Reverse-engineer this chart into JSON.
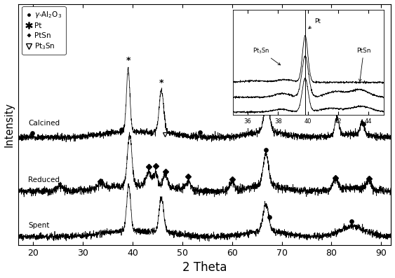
{
  "xlabel": "2 Theta",
  "ylabel": "Intensity",
  "xlim": [
    17,
    92
  ],
  "background_color": "#ffffff",
  "legend_entries": [
    {
      "label": "γ-Al₂O₃",
      "marker": "o"
    },
    {
      "label": "Pt",
      "marker": "*"
    },
    {
      "label": "PtSn",
      "marker": "D"
    },
    {
      "label": "Pt₃Sn",
      "marker": "v"
    }
  ],
  "curve_labels": [
    "Calcined",
    "Reduced",
    "Spent"
  ],
  "curve_offsets": [
    3.8,
    1.9,
    0.3
  ],
  "noise_seed": 7
}
